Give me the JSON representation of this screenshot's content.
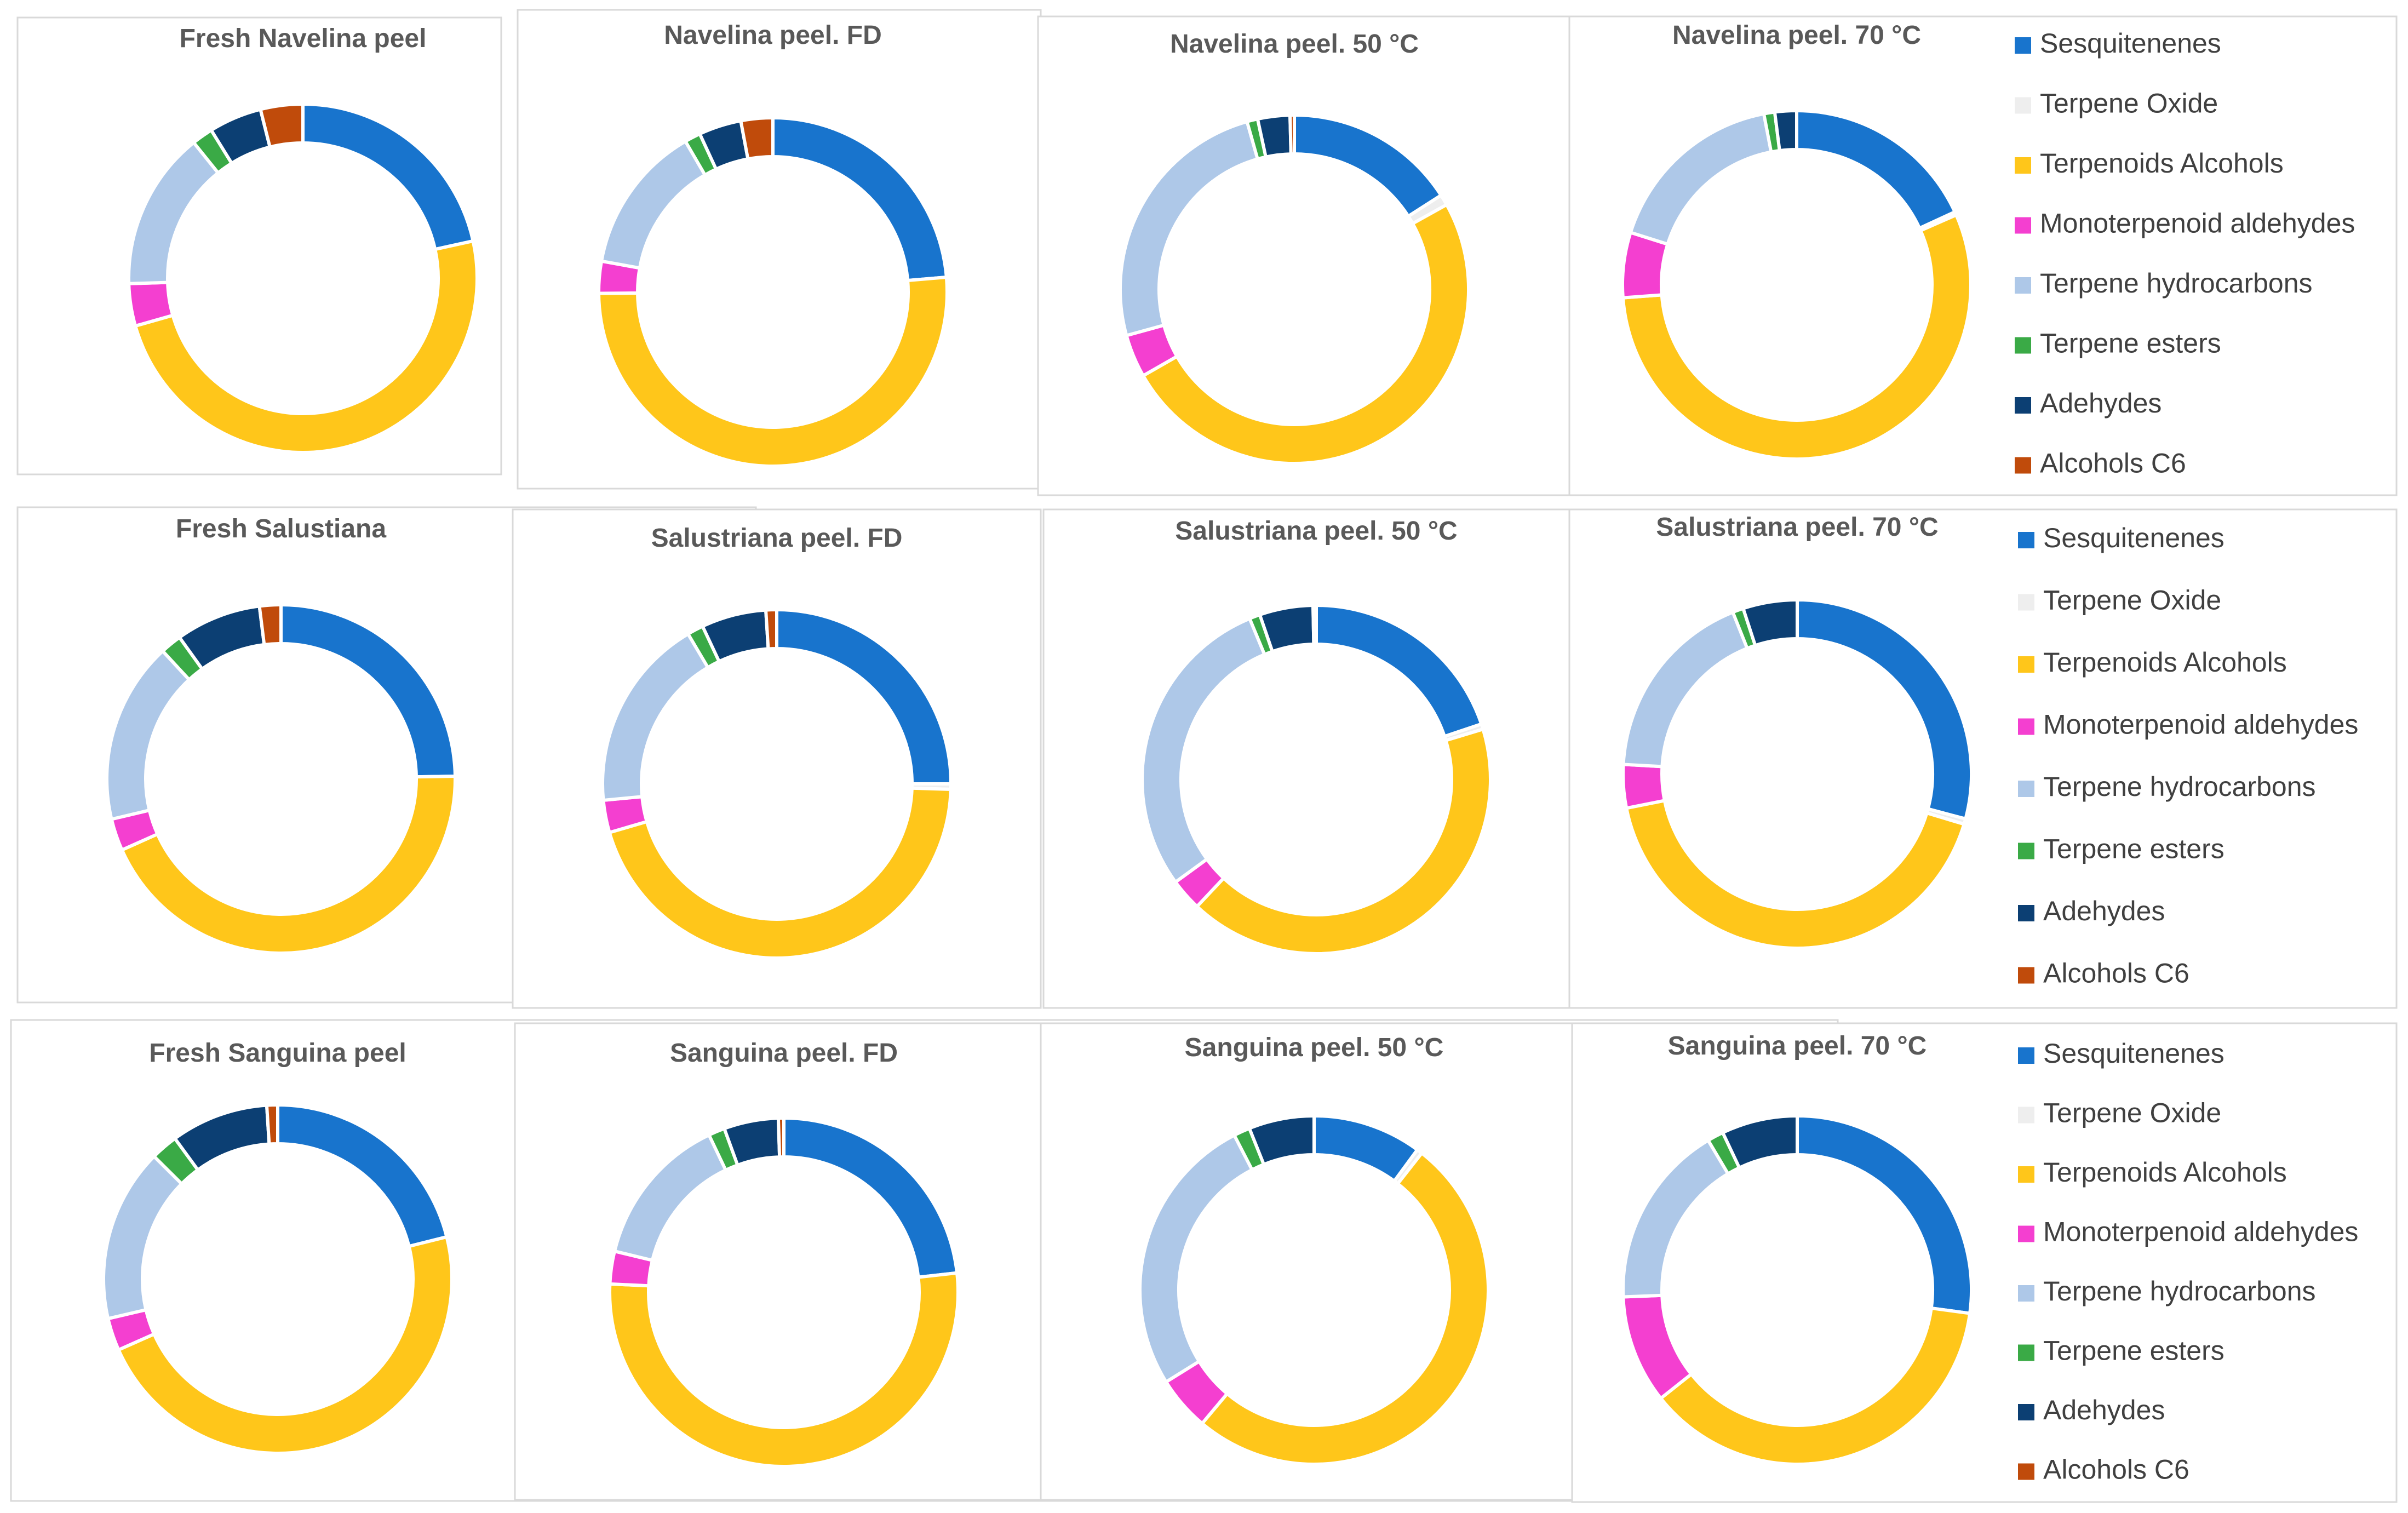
{
  "colors": {
    "Sesquitenenes": "#1874cd",
    "Terpene Oxide": "#eeeeee",
    "Terpenoids Alcohols": "#ffc61a",
    "Monoterpenoid aldehydes": "#f43fd0",
    "Terpene hydrocarbons": "#aec8e8",
    "Terpene esters": "#3aaa46",
    "Adehydes": "#0c3f73",
    "Alcohols C6": "#c04b0b"
  },
  "legends": [
    {
      "entries": [
        "Sesquitenenes",
        "Terpene Oxide",
        "Terpenoids Alcohols",
        "Monoterpenoid aldehydes",
        "Terpene hydrocarbons",
        "Terpene esters",
        "Adehydes",
        "Alcohols C6"
      ]
    },
    {
      "entries": [
        "Sesquitenenes",
        "Terpene Oxide",
        "Terpenoids Alcohols",
        "Monoterpenoid aldehydes",
        "Terpene hydrocarbons",
        "Terpene esters",
        "Adehydes",
        "Alcohols C6"
      ]
    },
    {
      "entries": [
        "Sesquitenenes",
        "Terpene Oxide",
        "Terpenoids Alcohols",
        "Monoterpenoid aldehydes",
        "Terpene hydrocarbons",
        "Terpene esters",
        "Adehydes",
        "Alcohols C6"
      ]
    }
  ],
  "chart_data": [
    {
      "type": "pie",
      "title": "Fresh Navelina peel",
      "categories": [
        "Sesquitenenes",
        "Terpene Oxide",
        "Terpenoids Alcohols",
        "Monoterpenoid aldehydes",
        "Terpene hydrocarbons",
        "Terpene esters",
        "Adehydes",
        "Alcohols C6"
      ],
      "values": [
        22,
        0,
        50,
        4,
        15,
        2,
        5,
        4
      ]
    },
    {
      "type": "pie",
      "title": "Navelina peel. FD",
      "categories": [
        "Sesquitenenes",
        "Terpene Oxide",
        "Terpenoids Alcohols",
        "Monoterpenoid aldehydes",
        "Terpene hydrocarbons",
        "Terpene esters",
        "Adehydes",
        "Alcohols C6"
      ],
      "values": [
        24,
        0,
        52,
        3,
        14,
        1.5,
        4,
        3
      ]
    },
    {
      "type": "pie",
      "title": "Navelina peel. 50 °C",
      "categories": [
        "Sesquitenenes",
        "Terpene Oxide",
        "Terpenoids Alcohols",
        "Monoterpenoid aldehydes",
        "Terpene hydrocarbons",
        "Terpene esters",
        "Adehydes",
        "Alcohols C6"
      ],
      "values": [
        16,
        1,
        50,
        4,
        25,
        1,
        3,
        0.4
      ]
    },
    {
      "type": "pie",
      "title": "Navelina peel. 70 °C",
      "categories": [
        "Sesquitenenes",
        "Terpene Oxide",
        "Terpenoids Alcohols",
        "Monoterpenoid aldehydes",
        "Terpene hydrocarbons",
        "Terpene esters",
        "Adehydes",
        "Alcohols C6"
      ],
      "values": [
        18,
        0.3,
        55,
        6,
        17,
        1,
        2,
        0
      ]
    },
    {
      "type": "pie",
      "title": "Fresh Salustiana",
      "categories": [
        "Sesquitenenes",
        "Terpene Oxide",
        "Terpenoids Alcohols",
        "Monoterpenoid aldehydes",
        "Terpene hydrocarbons",
        "Terpene esters",
        "Adehydes",
        "Alcohols C6"
      ],
      "values": [
        25,
        0,
        44,
        3,
        17,
        2,
        8,
        2
      ]
    },
    {
      "type": "pie",
      "title": "Salustriana peel. FD",
      "categories": [
        "Sesquitenenes",
        "Terpene Oxide",
        "Terpenoids Alcohols",
        "Monoterpenoid aldehydes",
        "Terpene hydrocarbons",
        "Terpene esters",
        "Adehydes",
        "Alcohols C6"
      ],
      "values": [
        25,
        0.5,
        45,
        3,
        18,
        1.5,
        6,
        1
      ]
    },
    {
      "type": "pie",
      "title": "Salustriana peel. 50 °C",
      "categories": [
        "Sesquitenenes",
        "Terpene Oxide",
        "Terpenoids Alcohols",
        "Monoterpenoid aldehydes",
        "Terpene hydrocarbons",
        "Terpene esters",
        "Adehydes",
        "Alcohols C6"
      ],
      "values": [
        20,
        0.5,
        42,
        3,
        29,
        1,
        5,
        0.3
      ]
    },
    {
      "type": "pie",
      "title": "Salustriana peel. 70 °C",
      "categories": [
        "Sesquitenenes",
        "Terpene Oxide",
        "Terpenoids Alcohols",
        "Monoterpenoid aldehydes",
        "Terpene hydrocarbons",
        "Terpene esters",
        "Adehydes",
        "Alcohols C6"
      ],
      "values": [
        29,
        0.5,
        42,
        4,
        18,
        1,
        5,
        0
      ]
    },
    {
      "type": "pie",
      "title": "Fresh Sanguina peel",
      "categories": [
        "Sesquitenenes",
        "Terpene Oxide",
        "Terpenoids Alcohols",
        "Monoterpenoid aldehydes",
        "Terpene hydrocarbons",
        "Terpene esters",
        "Adehydes",
        "Alcohols C6"
      ],
      "values": [
        21,
        0,
        47,
        3,
        16,
        2.5,
        9,
        1
      ]
    },
    {
      "type": "pie",
      "title": "Sanguina peel. FD",
      "categories": [
        "Sesquitenenes",
        "Terpene Oxide",
        "Terpenoids Alcohols",
        "Monoterpenoid aldehydes",
        "Terpene hydrocarbons",
        "Terpene esters",
        "Adehydes",
        "Alcohols C6"
      ],
      "values": [
        23,
        0,
        52,
        3,
        14,
        1.5,
        5,
        0.5
      ]
    },
    {
      "type": "pie",
      "title": "Sanguina peel. 50 °C",
      "categories": [
        "Sesquitenenes",
        "Terpene Oxide",
        "Terpenoids Alcohols",
        "Monoterpenoid aldehydes",
        "Terpene hydrocarbons",
        "Terpene esters",
        "Adehydes",
        "Alcohols C6"
      ],
      "values": [
        10,
        0.5,
        50,
        5,
        26,
        1.5,
        6,
        0
      ]
    },
    {
      "type": "pie",
      "title": "Sanguina peel. 70 °C",
      "categories": [
        "Sesquitenenes",
        "Terpene Oxide",
        "Terpenoids Alcohols",
        "Monoterpenoid aldehydes",
        "Terpene hydrocarbons",
        "Terpene esters",
        "Adehydes",
        "Alcohols C6"
      ],
      "values": [
        27,
        0,
        37,
        10,
        17,
        1.5,
        7,
        0
      ]
    }
  ]
}
